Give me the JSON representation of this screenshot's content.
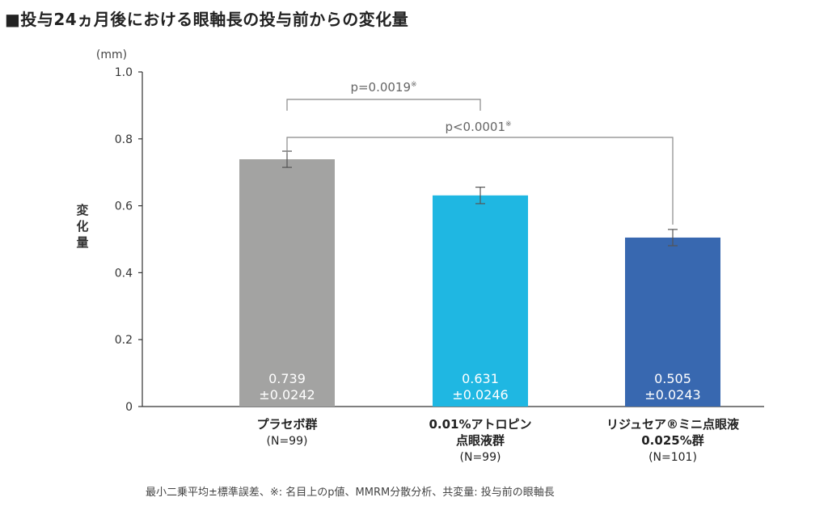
{
  "title": "■投与24ヵ月後における眼軸長の投与前からの変化量",
  "footnote": "最小二乗平均±標準誤差、※: 名目上のp値、MMRM分散分析、共変量: 投与前の眼軸長",
  "chart_data": {
    "type": "bar",
    "ylabel": "変化量",
    "yunit": "(mm)",
    "ylim": [
      0,
      1.0
    ],
    "yticks": [
      "0",
      "0.2",
      "0.4",
      "0.6",
      "0.8",
      "1.0"
    ],
    "grid": false,
    "categories": [
      {
        "lines": [
          "プラセボ群",
          "(N=99)"
        ]
      },
      {
        "lines": [
          "0.01%アトロピン",
          "点眼液群",
          "(N=99)"
        ]
      },
      {
        "lines": [
          "リジュセア®ミニ点眼液",
          "0.025%群",
          "(N=101)"
        ]
      }
    ],
    "values": [
      0.739,
      0.631,
      0.505
    ],
    "errors": [
      0.0242,
      0.0246,
      0.0243
    ],
    "value_labels": [
      [
        "0.739",
        "±0.0242"
      ],
      [
        "0.631",
        "±0.0246"
      ],
      [
        "0.505",
        "±0.0243"
      ]
    ],
    "colors": [
      "#a3a3a2",
      "#1fb7e2",
      "#3868b0"
    ],
    "comparisons": [
      {
        "from": 0,
        "to": 1,
        "label": "p=0.0019",
        "mark": "※"
      },
      {
        "from": 0,
        "to": 2,
        "label": "p<0.0001",
        "mark": "※"
      }
    ]
  }
}
